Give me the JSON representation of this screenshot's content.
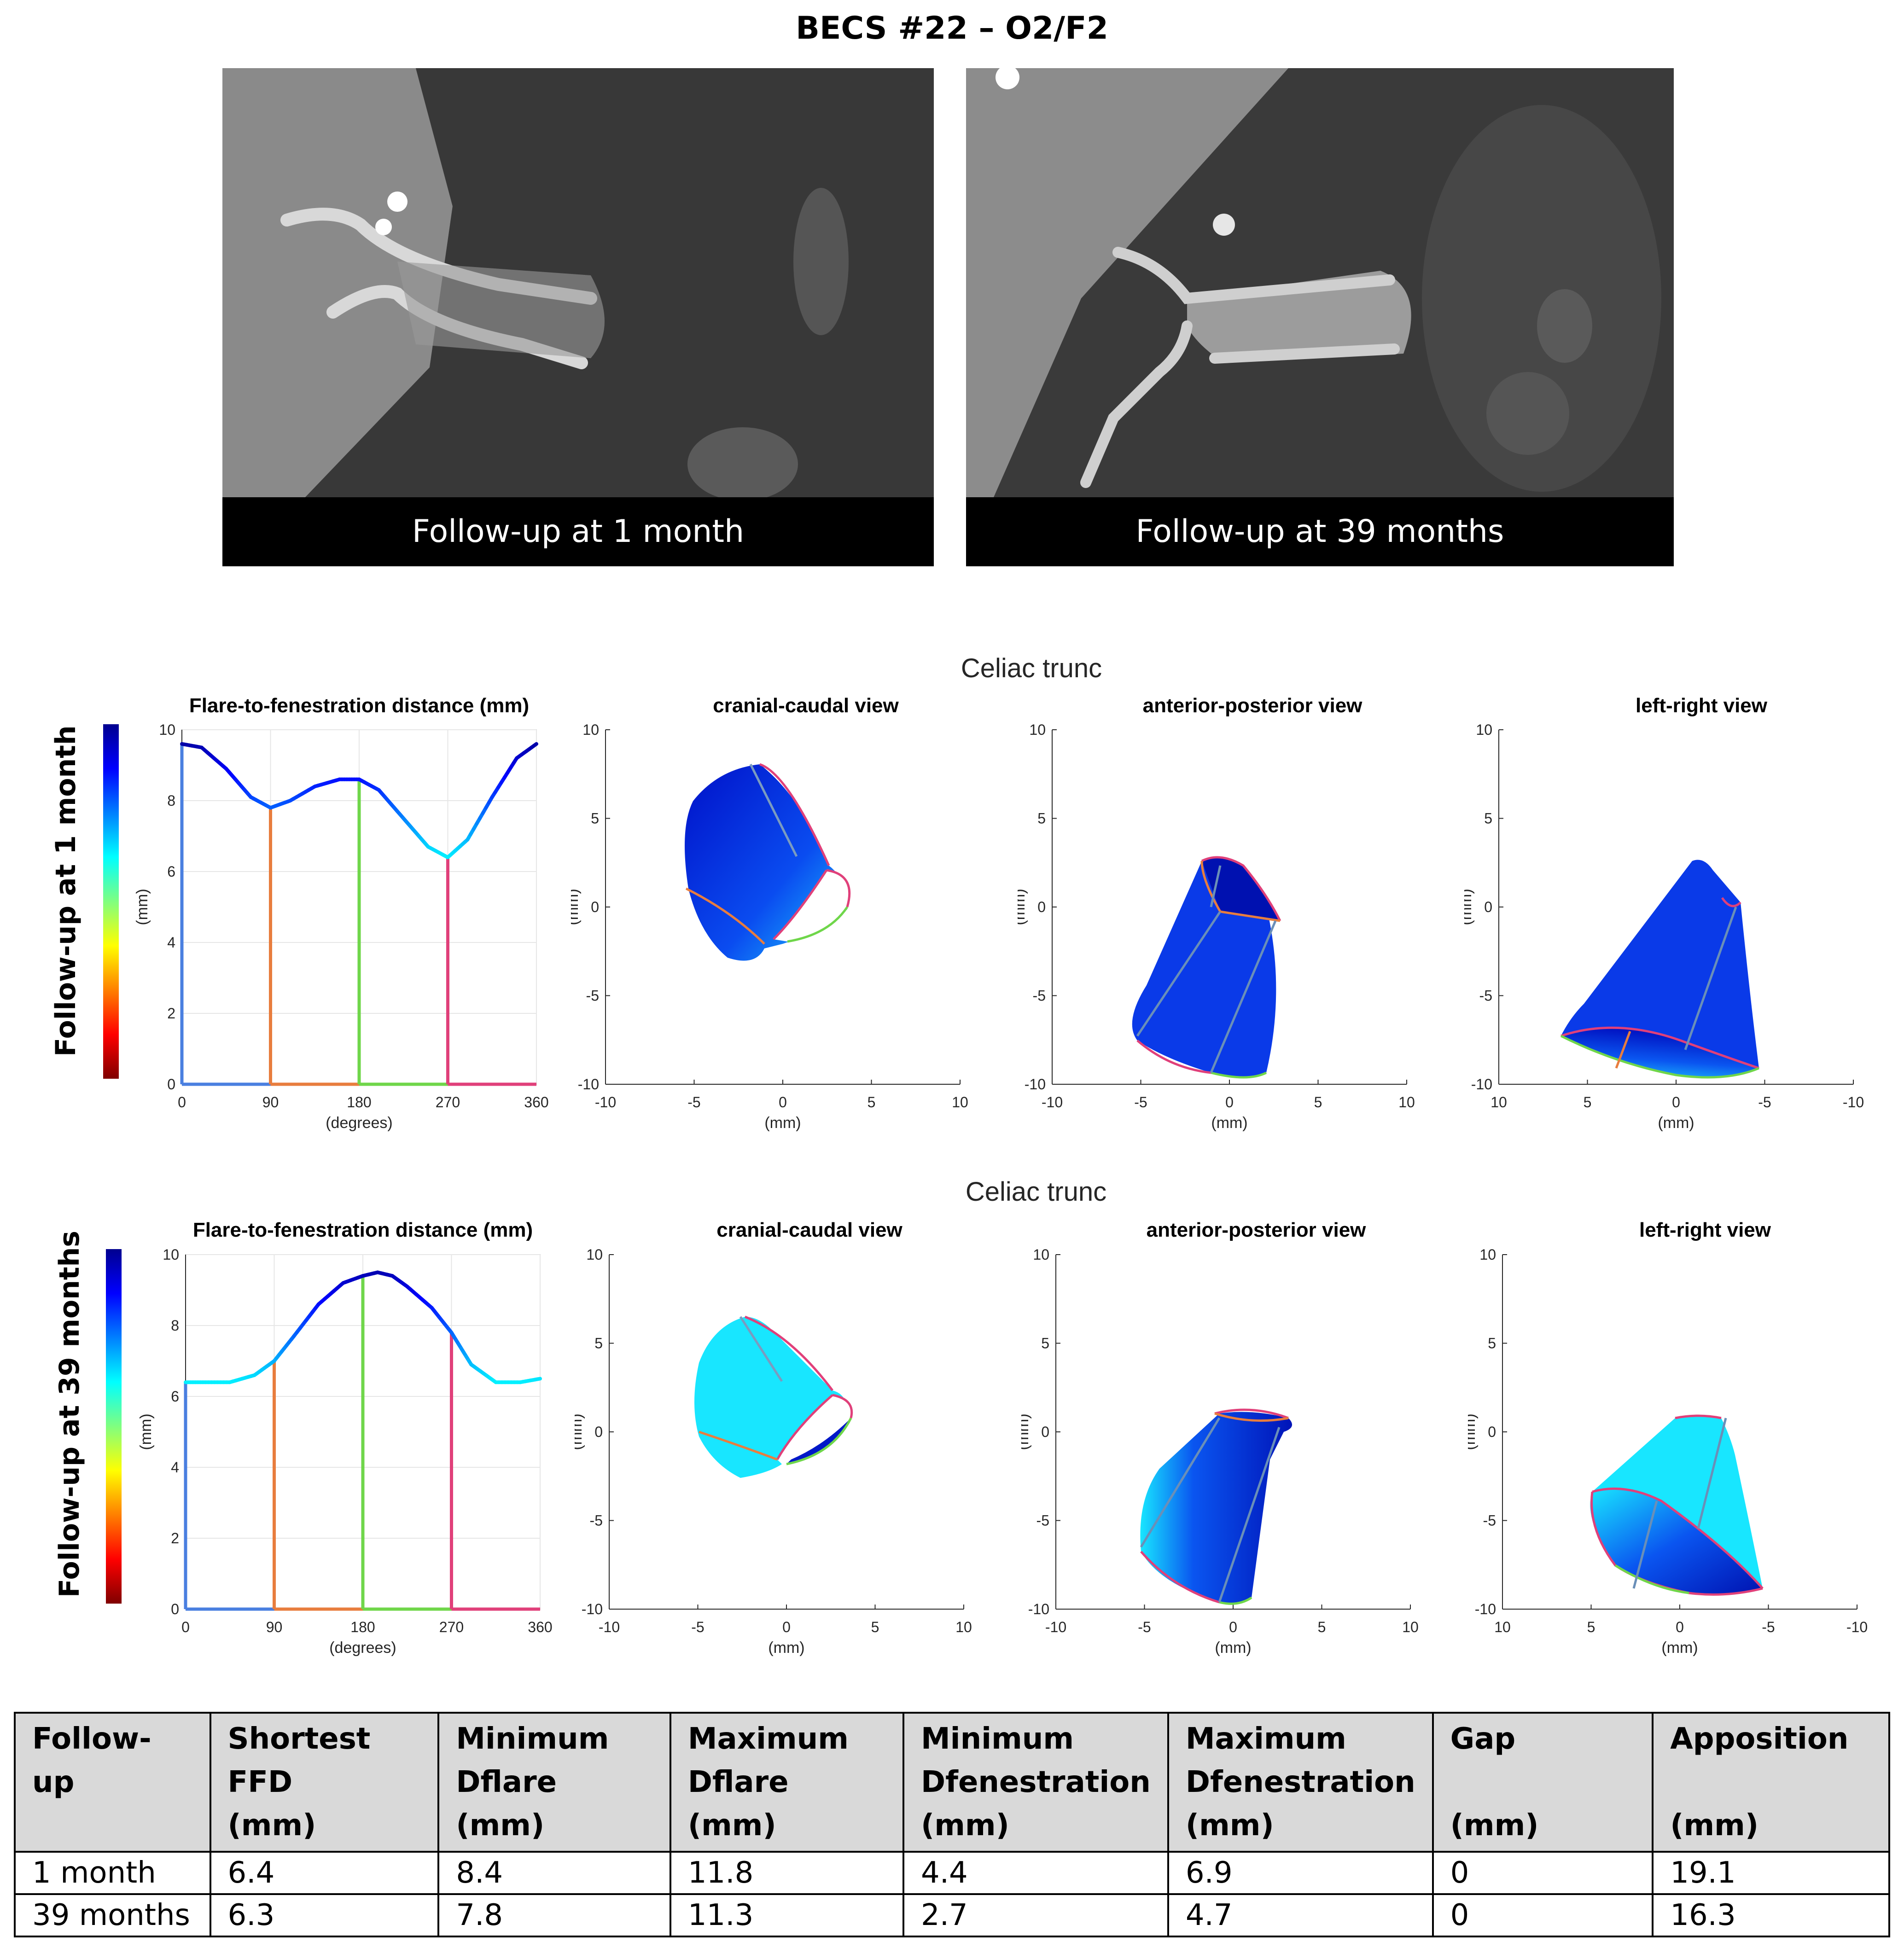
{
  "figure": {
    "title": "BECS #22 – O2/F2"
  },
  "ct_images": [
    {
      "caption": "Follow-up at 1 month"
    },
    {
      "caption": "Follow-up at 39 months"
    }
  ],
  "rows": [
    {
      "row_label": "Follow-up at 1 month",
      "section_title": "Celiac trunc"
    },
    {
      "row_label": "Follow-up at 39 months",
      "section_title": "Celiac trunc"
    }
  ],
  "panels": {
    "ffd_title": "Flare-to-fenestration distance (mm)",
    "ffd_xlabel": "(degrees)",
    "ffd_ylabel": "(mm)",
    "ffd_xticks": [
      "0",
      "90",
      "180",
      "270",
      "360"
    ],
    "ffd_yticks": [
      "0",
      "2",
      "4",
      "6",
      "8",
      "10"
    ],
    "views": [
      {
        "title": "cranial-caudal view",
        "xticks": [
          "-10",
          "-5",
          "0",
          "5",
          "10"
        ]
      },
      {
        "title": "anterior-posterior view",
        "xticks": [
          "-10",
          "-5",
          "0",
          "5",
          "10"
        ]
      },
      {
        "title": "left-right view",
        "xticks": [
          "10",
          "5",
          "0",
          "-5",
          "-10"
        ]
      }
    ],
    "view_yticks": [
      "10",
      "5",
      "0",
      "-5",
      "-10"
    ],
    "view_xlabel": "(mm)",
    "view_ylabel": "(mm)"
  },
  "colorbar": {
    "min": 0,
    "max": 10,
    "colormap": "jet-reversed"
  },
  "chart_data": [
    {
      "type": "line",
      "title": "Flare-to-fenestration distance (mm)",
      "xlabel": "(degrees)",
      "ylabel": "(mm)",
      "xlim": [
        0,
        360
      ],
      "ylim": [
        0,
        10
      ],
      "x": [
        0,
        20,
        45,
        70,
        90,
        110,
        135,
        160,
        180,
        200,
        225,
        250,
        270,
        290,
        315,
        340,
        360
      ],
      "y": [
        9.6,
        9.5,
        8.9,
        8.1,
        7.8,
        8.0,
        8.4,
        8.6,
        8.6,
        8.3,
        7.5,
        6.7,
        6.4,
        6.9,
        8.1,
        9.2,
        9.6
      ],
      "markers_deg": [
        90,
        180,
        270
      ],
      "marker_colors": [
        "#e87d3e",
        "#6fd64a",
        "#e0407a"
      ]
    },
    {
      "type": "line",
      "title": "Flare-to-fenestration distance (mm)",
      "xlabel": "(degrees)",
      "ylabel": "(mm)",
      "xlim": [
        0,
        360
      ],
      "ylim": [
        0,
        10
      ],
      "x": [
        0,
        20,
        45,
        70,
        90,
        110,
        135,
        160,
        180,
        195,
        210,
        225,
        250,
        270,
        290,
        315,
        340,
        360
      ],
      "y": [
        6.4,
        6.4,
        6.4,
        6.6,
        7.0,
        7.7,
        8.6,
        9.2,
        9.4,
        9.5,
        9.4,
        9.1,
        8.5,
        7.8,
        6.9,
        6.4,
        6.4,
        6.5
      ],
      "markers_deg": [
        90,
        180,
        270
      ],
      "marker_colors": [
        "#e87d3e",
        "#6fd64a",
        "#e0407a"
      ]
    }
  ],
  "table": {
    "headers": [
      [
        "Follow-up",
        "",
        ""
      ],
      [
        "Shortest",
        "FFD",
        "(mm)"
      ],
      [
        "Minimum",
        "Dflare",
        "(mm)"
      ],
      [
        "Maximum",
        "Dflare",
        "(mm)"
      ],
      [
        "Minimum",
        "Dfenestration",
        "(mm)"
      ],
      [
        "Maximum",
        "Dfenestration",
        "(mm)"
      ],
      [
        "Gap",
        "",
        "(mm)"
      ],
      [
        "Apposition",
        "",
        "(mm)"
      ]
    ],
    "rows": [
      [
        "1 month",
        "6.4",
        "8.4",
        "11.8",
        "4.4",
        "6.9",
        "0",
        "19.1"
      ],
      [
        "39 months",
        "6.3",
        "7.8",
        "11.3",
        "2.7",
        "4.7",
        "0",
        "16.3"
      ]
    ]
  }
}
